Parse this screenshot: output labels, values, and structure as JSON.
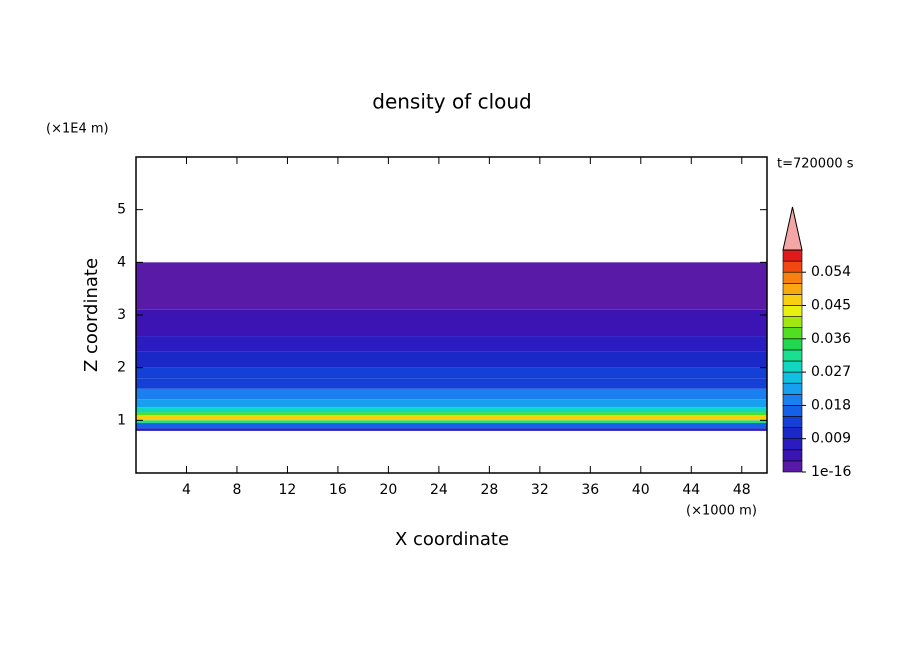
{
  "chart_data": {
    "type": "contour",
    "title": "density of cloud",
    "x_label": "X coordinate",
    "y_label": "Z coordinate",
    "x_unit": "(×1000 m)",
    "y_unit": "(×1E4 m)",
    "time_label": "t=720000 s",
    "xlim": [
      0,
      50
    ],
    "xticks": [
      4,
      8,
      12,
      16,
      20,
      24,
      28,
      32,
      36,
      40,
      44,
      48
    ],
    "ylim": [
      0,
      6
    ],
    "yticks": [
      1,
      2,
      3,
      4,
      5
    ],
    "z": [
      0.8,
      0.85,
      0.95,
      1.0,
      1.1,
      1.15,
      1.25,
      1.4,
      1.6,
      1.8,
      2.0,
      2.3,
      2.6,
      3.1,
      4.0
    ],
    "values": [
      0.006,
      0.015,
      0.03,
      0.045,
      0.036,
      0.027,
      0.022,
      0.018,
      0.014,
      0.012,
      0.009,
      0.006,
      0.004,
      0.001
    ],
    "colorbar": {
      "levels": [
        1e-16,
        0.003,
        0.006,
        0.009,
        0.012,
        0.015,
        0.018,
        0.021,
        0.024,
        0.027,
        0.03,
        0.033,
        0.036,
        0.039,
        0.042,
        0.045,
        0.048,
        0.051,
        0.054,
        0.057,
        0.06
      ],
      "colors": [
        "#5a1aa8",
        "#3c14b4",
        "#2a1cc0",
        "#1a28c8",
        "#1440d8",
        "#1460e8",
        "#1a80f0",
        "#18a0f0",
        "#10c0e0",
        "#10d8c0",
        "#18e090",
        "#20d850",
        "#50e020",
        "#a0e810",
        "#e8f010",
        "#f8d010",
        "#f8a810",
        "#f88010",
        "#f04810",
        "#e01a1a"
      ],
      "over_color": "#f4a6a6",
      "ticks": [
        1e-16,
        0.009,
        0.018,
        0.027,
        0.036,
        0.045,
        0.054
      ]
    }
  }
}
